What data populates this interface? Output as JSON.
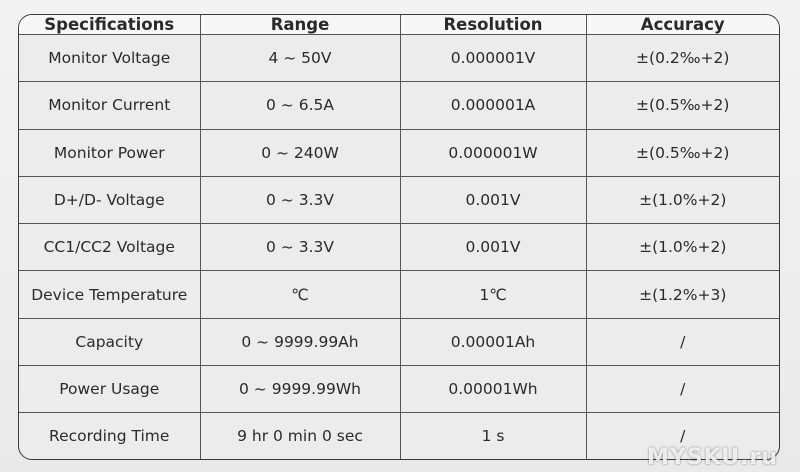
{
  "table": {
    "header": [
      "Specifications",
      "Range",
      "Resolution",
      "Accuracy"
    ],
    "rows": [
      [
        "Monitor Voltage",
        "4 ~ 50V",
        "0.000001V",
        "±(0.2‰+2)"
      ],
      [
        "Monitor Current",
        "0 ~ 6.5A",
        "0.000001A",
        "±(0.5‰+2)"
      ],
      [
        "Monitor Power",
        "0 ~ 240W",
        "0.000001W",
        "±(0.5‰+2)"
      ],
      [
        "D+/D- Voltage",
        "0 ~ 3.3V",
        "0.001V",
        "±(1.0%+2)"
      ],
      [
        "CC1/CC2 Voltage",
        "0 ~ 3.3V",
        "0.001V",
        "±(1.0%+2)"
      ],
      [
        "Device Temperature",
        "℃",
        "1℃",
        "±(1.2%+3)"
      ],
      [
        "Capacity",
        "0 ~ 9999.99Ah",
        "0.00001Ah",
        "/"
      ],
      [
        "Power Usage",
        "0 ~ 9999.99Wh",
        "0.00001Wh",
        "/"
      ],
      [
        "Recording Time",
        "9 hr 0 min 0 sec",
        "1 s",
        "/"
      ]
    ]
  },
  "watermark": "MYSKU.ru"
}
